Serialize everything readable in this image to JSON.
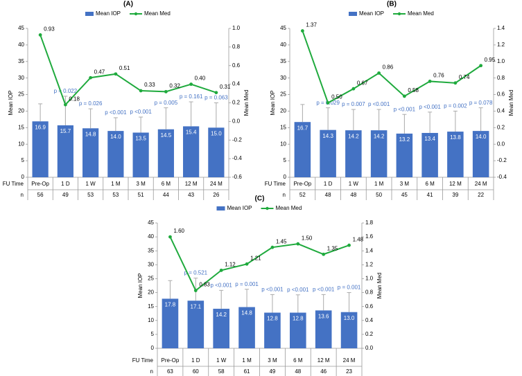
{
  "chart_data": [
    {
      "type": "combo",
      "title": "(A)",
      "ylabel": "Mean IOP",
      "y2label": "Mean Med",
      "categories": [
        "Pre-Op",
        "1 D",
        "1 W",
        "1 M",
        "3 M",
        "6 M",
        "12 M",
        "24 M"
      ],
      "series": [
        {
          "name": "Mean IOP",
          "color": "#4472c4",
          "axis": "y",
          "values": [
            16.9,
            15.7,
            14.8,
            14.0,
            13.5,
            14.5,
            15.4,
            15.0
          ],
          "value_labels": [
            "16.9",
            "15.7",
            "14.8",
            "14.0",
            "13.5",
            "14.5",
            "15.4",
            "15.0"
          ],
          "errors": [
            5.3,
            8.8,
            5.9,
            4.0,
            4.7,
            6.5,
            7.4,
            7.5
          ]
        },
        {
          "name": "Mean Med",
          "color": "#1faa3d",
          "axis": "y2",
          "values": [
            0.93,
            0.18,
            0.47,
            0.51,
            0.33,
            0.32,
            0.4,
            0.31
          ],
          "value_labels": [
            "0.93",
            "0.18",
            "0.47",
            "0.51",
            "0.33",
            "0.32",
            "0.40",
            "0.31"
          ]
        }
      ],
      "p_values": [
        null,
        "p = 0.022",
        "p = 0.026",
        "p <0.001",
        "p <0.001",
        "p = 0.005",
        "p = 0.161",
        "p = 0.063"
      ],
      "table_labels": [
        "FU Time",
        "n"
      ],
      "n": [
        56,
        49,
        53,
        53,
        51,
        44,
        43,
        26
      ],
      "ylim": [
        0,
        45
      ],
      "yticks": [
        0,
        5,
        10,
        15,
        20,
        25,
        30,
        35,
        40,
        45
      ],
      "y2lim": [
        -0.6,
        1.0
      ],
      "y2ticks": [
        -0.6,
        -0.4,
        -0.2,
        {
          "value": 0,
          "label": "0.0"
        },
        0.2,
        0.4,
        0.6,
        0.8,
        {
          "value": 1,
          "label": "1.0"
        }
      ]
    },
    {
      "type": "combo",
      "title": "(B)",
      "ylabel": "Mean IOP",
      "y2label": "Mean Med",
      "categories": [
        "Pre-Op",
        "1 D",
        "1 W",
        "1 M",
        "3 M",
        "6 M",
        "12 M",
        "24 M"
      ],
      "series": [
        {
          "name": "Mean IOP",
          "color": "#4472c4",
          "axis": "y",
          "values": [
            16.7,
            14.3,
            14.2,
            14.2,
            13.2,
            13.4,
            13.8,
            14.0
          ],
          "value_labels": [
            "16.7",
            "14.3",
            "14.2",
            "14.2",
            "13.2",
            "13.4",
            "13.8",
            "14.0"
          ],
          "errors": [
            5.3,
            6.7,
            6.3,
            6.3,
            5.8,
            6.3,
            6.2,
            7.0
          ]
        },
        {
          "name": "Mean Med",
          "color": "#1faa3d",
          "axis": "y2",
          "values": [
            1.37,
            0.5,
            0.67,
            0.86,
            0.58,
            0.76,
            0.74,
            0.95
          ],
          "value_labels": [
            "1.37",
            "0.50",
            "0.67",
            "0.86",
            "0.58",
            "0.76",
            "0.74",
            "0.95"
          ]
        }
      ],
      "p_values": [
        null,
        "p = 0.029",
        "p = 0.007",
        "p <0.001",
        "p <0.001",
        "p <0.001",
        "p = 0.002",
        "p = 0.078"
      ],
      "table_labels": [
        "FU Time",
        "n"
      ],
      "n": [
        52,
        48,
        48,
        50,
        45,
        41,
        39,
        22
      ],
      "ylim": [
        0,
        45
      ],
      "yticks": [
        0,
        5,
        10,
        15,
        20,
        25,
        30,
        35,
        40,
        45
      ],
      "y2lim": [
        -0.4,
        1.4
      ],
      "y2ticks": [
        -0.4,
        -0.2,
        {
          "value": 0,
          "label": "0.0"
        },
        0.2,
        0.4,
        0.6,
        0.8,
        {
          "value": 1,
          "label": "1.0"
        },
        1.2,
        1.4
      ]
    },
    {
      "type": "combo",
      "title": "(C)",
      "ylabel": "Mean IOP",
      "y2label": "Mean Med",
      "categories": [
        "Pre-Op",
        "1 D",
        "1 W",
        "1 M",
        "3 M",
        "6 M",
        "12 M",
        "24 M"
      ],
      "series": [
        {
          "name": "Mean IOP",
          "color": "#4472c4",
          "axis": "y",
          "values": [
            17.8,
            17.1,
            14.2,
            14.8,
            12.8,
            12.8,
            13.6,
            13.0
          ],
          "value_labels": [
            "17.8",
            "17.1",
            "14.2",
            "14.8",
            "12.8",
            "12.8",
            "13.6",
            "13.0"
          ],
          "errors": [
            6.5,
            8.1,
            6.6,
            6.4,
            6.5,
            6.4,
            5.7,
            7.0
          ]
        },
        {
          "name": "Mean Med",
          "color": "#1faa3d",
          "axis": "y2",
          "values": [
            1.6,
            0.83,
            1.12,
            1.21,
            1.45,
            1.5,
            1.35,
            1.48
          ],
          "value_labels": [
            "1.60",
            "0.83",
            "1.12",
            "1.21",
            "1.45",
            "1.50",
            "1.35",
            "1.48"
          ]
        }
      ],
      "p_values": [
        null,
        "p = 0.521",
        "p <0.001",
        "p = 0.001",
        "p <0.001",
        "p <0.001",
        "p <0.001",
        "p = 0.001"
      ],
      "table_labels": [
        "FU Time",
        "n"
      ],
      "n": [
        63,
        60,
        58,
        61,
        49,
        48,
        46,
        23
      ],
      "ylim": [
        0,
        45
      ],
      "yticks": [
        0,
        5,
        10,
        15,
        20,
        25,
        30,
        35,
        40,
        45
      ],
      "y2lim": [
        0,
        1.8
      ],
      "y2ticks": [
        {
          "value": 0,
          "label": "0.0"
        },
        0.2,
        0.4,
        0.6,
        0.8,
        {
          "value": 1,
          "label": "1.0"
        },
        1.2,
        1.4,
        1.6,
        1.8
      ]
    }
  ]
}
